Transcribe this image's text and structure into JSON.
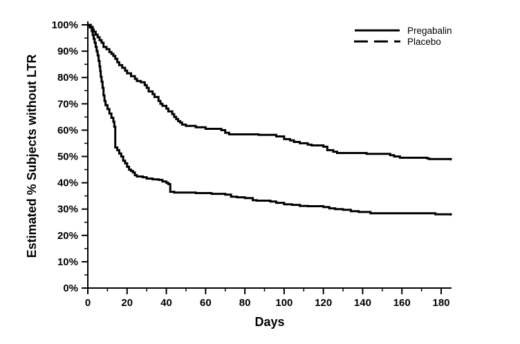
{
  "chart_data": {
    "type": "line",
    "subtype": "kaplan-meier-step",
    "title": "",
    "xlabel": "Days",
    "ylabel": "Estimated % Subjects without LTR",
    "xlim": [
      0,
      185
    ],
    "ylim": [
      0,
      100
    ],
    "grid": false,
    "legend_position": "top-right",
    "line_color": "#000000",
    "x_major_ticks": [
      0,
      20,
      40,
      60,
      80,
      100,
      120,
      140,
      160,
      180
    ],
    "x_minor_ticks": [
      10,
      30,
      50,
      70,
      90,
      110,
      130,
      150,
      170
    ],
    "x_tick_labels": [
      "0",
      "20",
      "40",
      "60",
      "80",
      "100",
      "120",
      "140",
      "160",
      "180"
    ],
    "y_major_ticks": [
      0,
      10,
      20,
      30,
      40,
      50,
      60,
      70,
      80,
      90,
      100
    ],
    "y_minor_ticks": [
      5,
      15,
      25,
      35,
      45,
      55,
      65,
      75,
      85,
      95
    ],
    "y_tick_labels": [
      "0%",
      "10%",
      "20%",
      "30%",
      "40%",
      "50%",
      "60%",
      "70%",
      "80%",
      "90%",
      "100%"
    ],
    "series": [
      {
        "name": "Pregabalin",
        "legend_style": "solid",
        "plot_style": "solid",
        "points": [
          [
            0,
            100
          ],
          [
            1.5,
            99.2
          ],
          [
            2.5,
            98.2
          ],
          [
            3,
            97.4
          ],
          [
            4,
            96.3
          ],
          [
            5,
            95.3
          ],
          [
            6,
            94.2
          ],
          [
            7,
            93.2
          ],
          [
            8,
            91.6
          ],
          [
            9.5,
            90.8
          ],
          [
            11,
            89.7
          ],
          [
            12,
            89
          ],
          [
            13,
            88.2
          ],
          [
            14,
            87.1
          ],
          [
            15,
            85.8
          ],
          [
            16,
            84.7
          ],
          [
            17.5,
            83.7
          ],
          [
            19,
            82.6
          ],
          [
            20,
            81.6
          ],
          [
            22,
            80.5
          ],
          [
            24,
            79.5
          ],
          [
            25,
            78.7
          ],
          [
            27,
            78.2
          ],
          [
            29,
            77.1
          ],
          [
            30,
            76.1
          ],
          [
            31,
            74.7
          ],
          [
            33,
            73.7
          ],
          [
            34,
            72.6
          ],
          [
            36,
            71.1
          ],
          [
            37,
            70
          ],
          [
            38,
            69.2
          ],
          [
            40,
            68.2
          ],
          [
            41,
            67.1
          ],
          [
            43,
            66.1
          ],
          [
            44,
            65
          ],
          [
            45,
            64.2
          ],
          [
            46,
            63.4
          ],
          [
            47,
            62.9
          ],
          [
            48,
            62.1
          ],
          [
            50,
            61.6
          ],
          [
            55,
            61.1
          ],
          [
            60,
            60.5
          ],
          [
            68,
            60
          ],
          [
            70,
            59
          ],
          [
            72,
            58.4
          ],
          [
            87,
            58.2
          ],
          [
            96,
            57.6
          ],
          [
            100,
            56.6
          ],
          [
            103,
            56.1
          ],
          [
            105,
            55.5
          ],
          [
            108,
            55
          ],
          [
            112,
            54.5
          ],
          [
            114,
            54.2
          ],
          [
            120,
            53.7
          ],
          [
            122,
            52.4
          ],
          [
            125,
            51.8
          ],
          [
            127,
            51.3
          ],
          [
            142,
            51
          ],
          [
            154,
            50.5
          ],
          [
            156,
            50
          ],
          [
            159,
            49.5
          ],
          [
            173,
            49.2
          ],
          [
            174,
            49
          ],
          [
            185,
            48.9
          ]
        ]
      },
      {
        "name": "Placebo",
        "legend_style": "dashed",
        "plot_style": "solid",
        "points": [
          [
            0,
            100
          ],
          [
            1,
            99
          ],
          [
            2,
            97.6
          ],
          [
            2.5,
            96.1
          ],
          [
            3,
            94.7
          ],
          [
            3.5,
            93.2
          ],
          [
            4,
            91.6
          ],
          [
            4.5,
            90
          ],
          [
            5,
            88.4
          ],
          [
            5.5,
            86.3
          ],
          [
            6,
            84.2
          ],
          [
            6.3,
            82.4
          ],
          [
            6.6,
            80.3
          ],
          [
            7,
            78.4
          ],
          [
            7.5,
            76.1
          ],
          [
            8,
            73.2
          ],
          [
            8.5,
            71.1
          ],
          [
            9,
            69.5
          ],
          [
            10,
            68
          ],
          [
            11,
            66.3
          ],
          [
            12,
            64.7
          ],
          [
            13,
            63.2
          ],
          [
            13.5,
            61.3
          ],
          [
            14,
            53.4
          ],
          [
            15,
            52.4
          ],
          [
            16,
            51.1
          ],
          [
            17,
            50
          ],
          [
            18,
            48.4
          ],
          [
            19,
            47.4
          ],
          [
            20,
            46.1
          ],
          [
            21,
            45
          ],
          [
            22,
            44.5
          ],
          [
            23,
            43.9
          ],
          [
            24,
            42.9
          ],
          [
            25,
            42.4
          ],
          [
            28,
            42.1
          ],
          [
            30,
            41.6
          ],
          [
            33,
            41.3
          ],
          [
            36,
            41.1
          ],
          [
            38,
            40.5
          ],
          [
            40,
            40
          ],
          [
            41,
            39.5
          ],
          [
            42,
            36.6
          ],
          [
            44,
            36.3
          ],
          [
            55,
            36.1
          ],
          [
            63,
            35.8
          ],
          [
            70,
            35.5
          ],
          [
            73,
            34.7
          ],
          [
            76,
            34.5
          ],
          [
            80,
            34.2
          ],
          [
            84,
            33.4
          ],
          [
            86,
            33.2
          ],
          [
            93,
            32.9
          ],
          [
            96,
            32.4
          ],
          [
            100,
            31.8
          ],
          [
            104,
            31.6
          ],
          [
            108,
            31.2
          ],
          [
            112,
            31.1
          ],
          [
            120,
            30.8
          ],
          [
            123,
            30.3
          ],
          [
            126,
            30
          ],
          [
            130,
            29.7
          ],
          [
            134,
            29.2
          ],
          [
            138,
            28.9
          ],
          [
            144,
            28.4
          ],
          [
            177,
            28
          ],
          [
            185,
            27.9
          ]
        ]
      }
    ]
  }
}
